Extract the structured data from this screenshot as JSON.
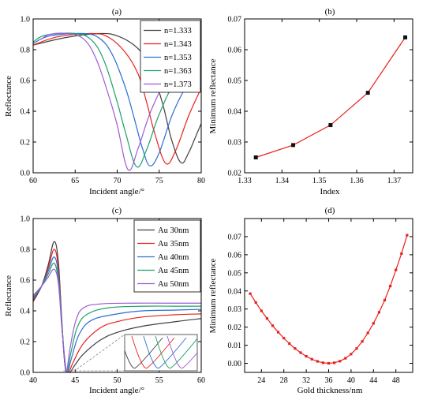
{
  "chart_data": [
    {
      "panel": "(a)",
      "type": "line",
      "xlabel": "Incident angle/°",
      "ylabel": "Reflectance",
      "xlim": [
        60,
        80
      ],
      "ylim": [
        0.0,
        1.0
      ],
      "xticks": [
        "60",
        "65",
        "70",
        "75",
        "80"
      ],
      "yticks": [
        "0.0",
        "0.2",
        "0.4",
        "0.6",
        "0.8",
        "1.0"
      ],
      "legend_position": "top-right",
      "series": [
        {
          "name": "n=1.333",
          "color": "#404040",
          "dip_angle": 77.6,
          "min_reflectance": 0.065,
          "x": [
            60,
            64,
            68,
            70,
            72,
            73.5,
            74.5,
            75.5,
            76.5,
            77.6,
            78.5,
            79.3,
            80
          ],
          "y": [
            0.83,
            0.88,
            0.905,
            0.89,
            0.83,
            0.74,
            0.61,
            0.43,
            0.21,
            0.065,
            0.13,
            0.23,
            0.32
          ]
        },
        {
          "name": "n=1.343",
          "color": "#e8211d",
          "dip_angle": 75.8,
          "min_reflectance": 0.06,
          "x": [
            60,
            63,
            67,
            69,
            71,
            72.5,
            73.5,
            74.5,
            75.8,
            77,
            78.5,
            80
          ],
          "y": [
            0.83,
            0.885,
            0.905,
            0.88,
            0.78,
            0.64,
            0.46,
            0.25,
            0.06,
            0.15,
            0.37,
            0.55
          ]
        },
        {
          "name": "n=1.353",
          "color": "#2a6fd1",
          "dip_angle": 73.9,
          "min_reflectance": 0.045,
          "x": [
            60,
            62,
            66,
            68,
            69.5,
            71,
            72,
            73,
            73.9,
            75,
            76.5,
            78,
            80
          ],
          "y": [
            0.84,
            0.89,
            0.905,
            0.87,
            0.76,
            0.55,
            0.36,
            0.16,
            0.045,
            0.13,
            0.37,
            0.54,
            0.7
          ]
        },
        {
          "name": "n=1.363",
          "color": "#1fa06b",
          "dip_angle": 72.3,
          "min_reflectance": 0.04,
          "x": [
            60,
            61.5,
            65,
            67,
            68.5,
            70,
            71,
            72.3,
            73.5,
            75,
            77,
            80
          ],
          "y": [
            0.85,
            0.895,
            0.905,
            0.86,
            0.72,
            0.46,
            0.26,
            0.04,
            0.15,
            0.38,
            0.6,
            0.77
          ]
        },
        {
          "name": "n=1.373",
          "color": "#9c5bd6",
          "dip_angle": 71.3,
          "min_reflectance": 0.02,
          "x": [
            61,
            62,
            64,
            66,
            67.5,
            69,
            70,
            71.3,
            72.5,
            74,
            76,
            78,
            80
          ],
          "y": [
            0.87,
            0.9,
            0.905,
            0.87,
            0.74,
            0.5,
            0.31,
            0.02,
            0.16,
            0.4,
            0.62,
            0.74,
            0.8
          ]
        }
      ]
    },
    {
      "panel": "(b)",
      "type": "line",
      "xlabel": "Index",
      "ylabel": "Minimum reflectance",
      "xlim": [
        1.33,
        1.375
      ],
      "ylim": [
        0.02,
        0.07
      ],
      "xticks": [
        "1.33",
        "1.34",
        "1.35",
        "1.36",
        "1.37"
      ],
      "yticks": [
        "0.02",
        "0.03",
        "0.04",
        "0.05",
        "0.06",
        "0.07"
      ],
      "series": [
        {
          "color": "#e8211d",
          "marker": "square",
          "x": [
            1.333,
            1.343,
            1.353,
            1.363,
            1.373
          ],
          "y": [
            0.025,
            0.029,
            0.0355,
            0.046,
            0.064
          ]
        }
      ]
    },
    {
      "panel": "(c)",
      "type": "line",
      "xlabel": "Incident angle/°",
      "ylabel": "Reflectance",
      "xlim": [
        40,
        60
      ],
      "ylim": [
        0.0,
        1.0
      ],
      "xticks": [
        "40",
        "45",
        "50",
        "55",
        "60"
      ],
      "yticks": [
        "0.0",
        "0.2",
        "0.4",
        "0.6",
        "0.8",
        "1.0"
      ],
      "legend_position": "top-right",
      "inset": "magnified view of the dips",
      "series": [
        {
          "name": "Au 30nm",
          "color": "#404040",
          "peak": 0.85,
          "plateau": 0.35,
          "x": [
            40,
            41,
            41.8,
            42.5,
            43,
            43.4,
            43.8,
            44.3,
            45,
            46,
            48,
            50,
            53,
            57,
            60
          ],
          "y": [
            0.46,
            0.56,
            0.7,
            0.85,
            0.72,
            0.35,
            0.05,
            0.0,
            0.05,
            0.12,
            0.21,
            0.26,
            0.3,
            0.33,
            0.35
          ]
        },
        {
          "name": "Au 35nm",
          "color": "#e8211d",
          "peak": 0.8,
          "plateau": 0.38,
          "x": [
            40,
            41,
            41.8,
            42.5,
            43,
            43.4,
            43.8,
            44.2,
            44.8,
            46,
            48,
            50,
            53,
            57,
            60
          ],
          "y": [
            0.47,
            0.56,
            0.68,
            0.8,
            0.68,
            0.33,
            0.04,
            0.0,
            0.07,
            0.19,
            0.29,
            0.33,
            0.36,
            0.375,
            0.38
          ]
        },
        {
          "name": "Au 40nm",
          "color": "#2a6fd1",
          "peak": 0.75,
          "plateau": 0.41,
          "x": [
            40,
            41,
            41.8,
            42.5,
            43,
            43.4,
            43.8,
            44.1,
            44.6,
            45.5,
            47,
            50,
            53,
            57,
            60
          ],
          "y": [
            0.48,
            0.56,
            0.66,
            0.75,
            0.64,
            0.32,
            0.04,
            0.0,
            0.1,
            0.25,
            0.34,
            0.38,
            0.4,
            0.405,
            0.41
          ]
        },
        {
          "name": "Au 45nm",
          "color": "#1fa06b",
          "peak": 0.71,
          "plateau": 0.43,
          "x": [
            40,
            41,
            41.8,
            42.5,
            43,
            43.4,
            43.8,
            44.05,
            44.5,
            45.3,
            46.5,
            49,
            53,
            57,
            60
          ],
          "y": [
            0.49,
            0.56,
            0.64,
            0.71,
            0.6,
            0.32,
            0.06,
            0.0,
            0.13,
            0.3,
            0.38,
            0.42,
            0.43,
            0.43,
            0.43
          ]
        },
        {
          "name": "Au 50nm",
          "color": "#9c5bd6",
          "peak": 0.67,
          "plateau": 0.45,
          "x": [
            40,
            41,
            41.8,
            42.5,
            43,
            43.4,
            43.8,
            44.0,
            44.4,
            45.1,
            46,
            48,
            52,
            57,
            60
          ],
          "y": [
            0.5,
            0.56,
            0.62,
            0.67,
            0.58,
            0.3,
            0.07,
            0.01,
            0.16,
            0.34,
            0.42,
            0.445,
            0.45,
            0.45,
            0.45
          ]
        }
      ]
    },
    {
      "panel": "(d)",
      "type": "line",
      "xlabel": "Gold thickness/nm",
      "ylabel": "Minimum reflectance",
      "xlim": [
        21,
        51
      ],
      "ylim": [
        -0.005,
        0.08
      ],
      "xticks": [
        "24",
        "28",
        "32",
        "36",
        "40",
        "44",
        "48"
      ],
      "yticks": [
        "0.00",
        "0.01",
        "0.02",
        "0.03",
        "0.04",
        "0.05",
        "0.06",
        "0.07"
      ],
      "series": [
        {
          "color": "#e8211d",
          "marker": "square",
          "x": [
            22,
            23,
            24,
            25,
            26,
            27,
            28,
            29,
            30,
            31,
            32,
            33,
            34,
            35,
            36,
            37,
            38,
            39,
            40,
            41,
            42,
            43,
            44,
            45,
            46,
            47,
            48,
            49,
            50
          ],
          "y": [
            0.0385,
            0.0336,
            0.029,
            0.0248,
            0.0208,
            0.0172,
            0.0139,
            0.0109,
            0.0082,
            0.0059,
            0.0039,
            0.0023,
            0.0011,
            0.0003,
            0.0,
            0.0003,
            0.0012,
            0.0028,
            0.0051,
            0.0082,
            0.0121,
            0.0168,
            0.0221,
            0.0282,
            0.0349,
            0.0427,
            0.0516,
            0.0606,
            0.0708
          ]
        }
      ]
    }
  ]
}
